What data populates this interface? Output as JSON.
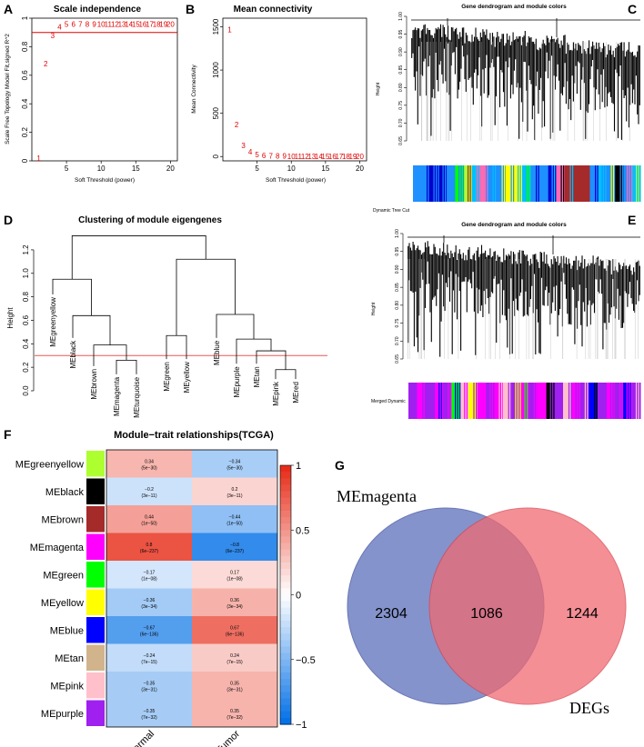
{
  "panels": {
    "A": "A",
    "B": "B",
    "C": "C",
    "D": "D",
    "E": "E",
    "F": "F",
    "G": "G"
  },
  "chart_data": [
    {
      "type": "scatter",
      "id": "A",
      "title": "Scale independence",
      "xlabel": "Soft Threshold (power)",
      "ylabel": "Scale Free Topology Model Fit,signed R^2",
      "xlim": [
        0,
        21
      ],
      "ylim": [
        0,
        1.0
      ],
      "xticks": [
        5,
        10,
        15,
        20
      ],
      "yticks": [
        0,
        0.2,
        0.4,
        0.6,
        0.8,
        1.0
      ],
      "ytick_labels": [
        "0",
        "0.2",
        "0.4",
        "0.6",
        "0.8",
        "1"
      ],
      "x": [
        1,
        2,
        3,
        4,
        5,
        6,
        7,
        8,
        9,
        10,
        11,
        12,
        13,
        14,
        15,
        16,
        17,
        18,
        19,
        20
      ],
      "y": [
        0.02,
        0.68,
        0.88,
        0.94,
        0.96,
        0.96,
        0.96,
        0.96,
        0.96,
        0.96,
        0.96,
        0.96,
        0.96,
        0.96,
        0.96,
        0.96,
        0.96,
        0.96,
        0.96,
        0.96
      ],
      "hline": 0.9
    },
    {
      "type": "scatter",
      "id": "B",
      "title": "Mean connectivity",
      "xlabel": "Soft Threshold (power)",
      "ylabel": "Mean Connectivity",
      "xlim": [
        0,
        21
      ],
      "ylim": [
        -50,
        1600
      ],
      "xticks": [
        5,
        10,
        15,
        20
      ],
      "yticks": [
        0,
        500,
        1000,
        1500
      ],
      "x": [
        1,
        2,
        3,
        4,
        5,
        6,
        7,
        8,
        9,
        10,
        11,
        12,
        13,
        14,
        15,
        16,
        17,
        18,
        19,
        20
      ],
      "y": [
        1470,
        370,
        130,
        55,
        25,
        15,
        10,
        8,
        6,
        5,
        4,
        3,
        3,
        2,
        2,
        2,
        1,
        1,
        1,
        1
      ]
    },
    {
      "type": "dendrogram",
      "id": "D",
      "title": "Clustering of module eigengenes",
      "ylabel": "Height",
      "ylim": [
        0.0,
        1.3
      ],
      "yticks": [
        0.0,
        0.2,
        0.4,
        0.6,
        0.8,
        1.0,
        1.2
      ],
      "cut_height": 0.3,
      "leaves": [
        "MEgreenyellow",
        "MEblack",
        "MEbrown",
        "MEmagenta",
        "MEturquoise",
        "MEgreen",
        "MEyellow",
        "MEblue",
        "MEpurple",
        "MEtan",
        "MEpink",
        "MEred"
      ]
    },
    {
      "type": "heatmap",
      "id": "F",
      "title": "Module−trait relationships(TCGA)",
      "columns": [
        "Normal",
        "Tumor"
      ],
      "rows": [
        "MEgreenyellow",
        "MEblack",
        "MEbrown",
        "MEmagenta",
        "MEgreen",
        "MEyellow",
        "MEblue",
        "MEtan",
        "MEpink",
        "MEpurple"
      ],
      "row_colors": [
        "#adff2f",
        "#000000",
        "#a52a2a",
        "#ff00ff",
        "#00ff00",
        "#ffff00",
        "#0000ff",
        "#d2b48c",
        "#ffc0cb",
        "#a020f0"
      ],
      "values": [
        [
          0.34,
          -0.34
        ],
        [
          -0.2,
          0.2
        ],
        [
          0.44,
          -0.44
        ],
        [
          0.8,
          -0.8
        ],
        [
          -0.17,
          0.17
        ],
        [
          -0.36,
          0.36
        ],
        [
          -0.67,
          0.67
        ],
        [
          -0.24,
          0.24
        ],
        [
          -0.35,
          0.35
        ],
        [
          -0.35,
          0.35
        ]
      ],
      "cell_text": [
        [
          "0.34",
          "(5e−30)",
          "−0.34",
          "(5e−30)"
        ],
        [
          "−0.2",
          "(3e−11)",
          "0.2",
          "(3e−11)"
        ],
        [
          "0.44",
          "(1e−50)",
          "−0.44",
          "(1e−50)"
        ],
        [
          "0.8",
          "(6e−237)",
          "−0.8",
          "(6e−237)"
        ],
        [
          "−0.17",
          "(1e−08)",
          "0.17",
          "(1e−08)"
        ],
        [
          "−0.36",
          "(3e−34)",
          "0.36",
          "(3e−34)"
        ],
        [
          "−0.67",
          "(6e−136)",
          "0.67",
          "(6e−136)"
        ],
        [
          "−0.24",
          "(7e−15)",
          "0.24",
          "(7e−15)"
        ],
        [
          "−0.35",
          "(3e−31)",
          "0.35",
          "(3e−31)"
        ],
        [
          "−0.35",
          "(7e−32)",
          "0.35",
          "(7e−32)"
        ]
      ],
      "colorbar_ticks": [
        "1",
        "0.5",
        "0",
        "−0.5",
        "−1"
      ]
    }
  ],
  "dendro_C": {
    "title": "Gene dendrogram and module colors",
    "ylabel": "Height",
    "yticks": [
      "1.00",
      "0.95",
      "0.90",
      "0.85",
      "0.80",
      "0.75",
      "0.70",
      "0.65"
    ],
    "bar_label": "Dynamic Tree Cut",
    "colors": [
      "#1e90ff",
      "#1e90ff",
      "#0000cd",
      "#0000cd",
      "#1e90ff",
      "#00ff00",
      "#adff2f",
      "#00bfff",
      "#ff69b4",
      "#1e90ff",
      "#1e90ff",
      "#ffff00",
      "#ffff00",
      "#00bfff",
      "#1e90ff",
      "#1e90ff",
      "#0000cd",
      "#ff69b4",
      "#a52a2a",
      "#a52a2a",
      "#a52a2a",
      "#1e90ff",
      "#00bfff",
      "#1e90ff",
      "#000000",
      "#1e90ff",
      "#00bfff"
    ]
  },
  "dendro_E": {
    "title": "Gene dendrogram and module colors",
    "ylabel": "Height",
    "yticks": [
      "1.00",
      "0.95",
      "0.90",
      "0.85",
      "0.80",
      "0.75",
      "0.70",
      "0.65"
    ],
    "bar_label": "Merged Dynamic",
    "colors": [
      "#a020f0",
      "#ff00ff",
      "#a020f0",
      "#ff00ff",
      "#a020f0",
      "#00ff00",
      "#ffc0cb",
      "#ffff00",
      "#ff00ff",
      "#a020f0",
      "#ff00ff",
      "#ffc0cb",
      "#a020f0",
      "#ff00ff",
      "#a020f0",
      "#ff00ff",
      "#000000",
      "#a020f0",
      "#ffc0cb",
      "#ff00ff",
      "#a020f0",
      "#0000ff",
      "#a020f0",
      "#ff00ff",
      "#a020f0",
      "#0000ff",
      "#a020f0"
    ]
  },
  "venn": {
    "left_label": "MEmagenta",
    "right_label": "DEGs",
    "left_only": "2304",
    "overlap": "1086",
    "right_only": "1244",
    "left_color": "#5b6fbb",
    "right_color": "#ef6a72"
  }
}
